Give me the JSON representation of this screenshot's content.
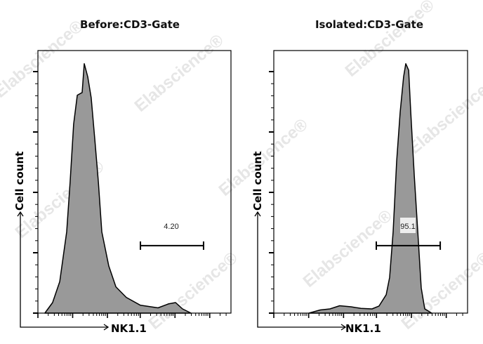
{
  "watermark": "Elabscience®",
  "colors": {
    "fill": "#999999",
    "outline": "#000000",
    "gate_label_box": "#eeeeee"
  },
  "chart_data": [
    {
      "type": "area",
      "title": "Before:CD3-Gate",
      "xlabel": "NK1.1",
      "ylabel": "Cell count",
      "x_scale": "log",
      "xlim": [
        0,
        100
      ],
      "ylim": [
        0,
        100
      ],
      "series": [
        {
          "x": [
            3.6,
            7.6,
            11.3,
            14.9,
            16.7,
            18.5,
            20.4,
            22.9,
            24,
            25.8,
            27.6,
            29.5,
            31.3,
            33.1,
            36.7,
            40.4,
            45.8,
            53.1,
            62.2,
            67.6,
            71.3,
            74.9,
            79.3
          ],
          "y": [
            0,
            4,
            12,
            31,
            50,
            72,
            83,
            84,
            95,
            90,
            82,
            66,
            50,
            31,
            18,
            10,
            6,
            3,
            2,
            3.5,
            4,
            1.6,
            0
          ]
        }
      ],
      "gate": {
        "label": "4.20",
        "x_range": [
          53.1,
          85.8
        ],
        "y_level": 25.7
      }
    },
    {
      "type": "area",
      "title": "Isolated:CD3-Gate",
      "xlabel": "NK1.1",
      "ylabel": "Cell count",
      "x_scale": "log",
      "xlim": [
        0,
        100
      ],
      "ylim": [
        0,
        100
      ],
      "series": [
        {
          "x": [
            18.1,
            24,
            29,
            34,
            39.9,
            45,
            50.7,
            54.3,
            58,
            59.8,
            61.6,
            63.4,
            65.2,
            67,
            68.1,
            69.6,
            70.7,
            72.5,
            74.3,
            76.1,
            77.9,
            81.5
          ],
          "y": [
            0,
            1.2,
            1.6,
            2.8,
            2.4,
            1.8,
            1.6,
            2.7,
            7,
            13.6,
            31,
            57.8,
            76.5,
            90,
            95,
            92.5,
            76.5,
            52.4,
            31,
            9.6,
            1.6,
            0
          ]
        }
      ],
      "gate": {
        "label": "95.1",
        "x_range": [
          52.9,
          85.9
        ],
        "y_level": 25.7
      }
    }
  ]
}
